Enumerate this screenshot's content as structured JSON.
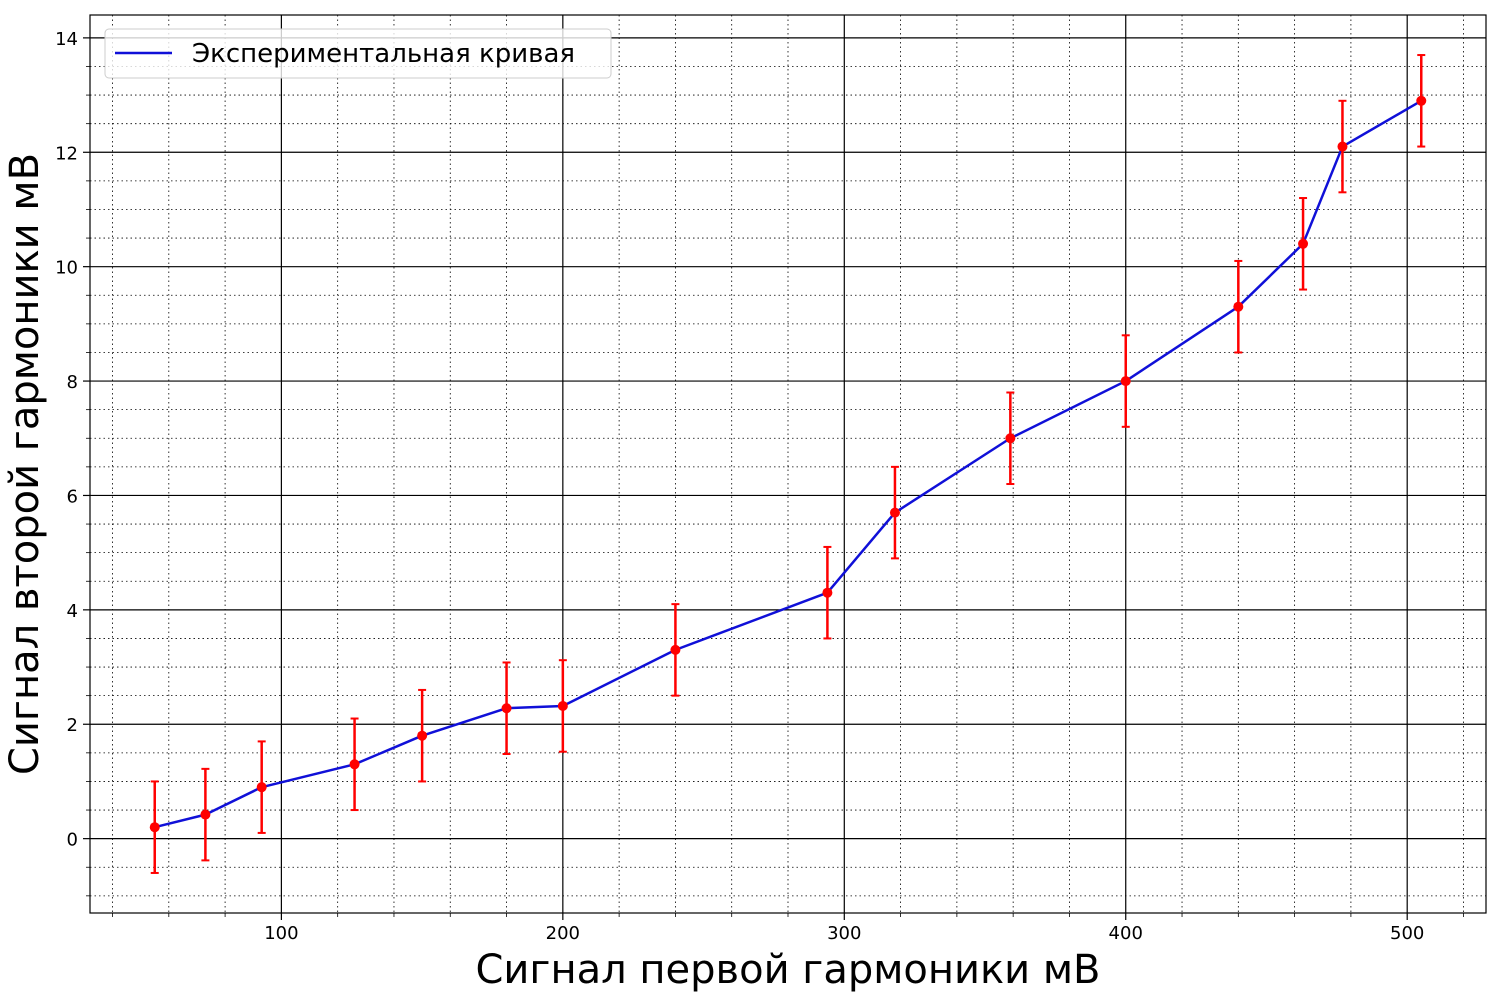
{
  "chart_data": {
    "type": "line",
    "xlabel": "Сигнал первой гармоники мВ",
    "ylabel": "Сигнал второй гармоники мВ",
    "xlim": [
      32,
      528
    ],
    "ylim": [
      -1.3,
      14.4
    ],
    "x_major_ticks": [
      100,
      200,
      300,
      400,
      500
    ],
    "y_major_ticks": [
      0,
      2,
      4,
      6,
      8,
      10,
      12,
      14
    ],
    "x_minor_step": 20,
    "y_minor_step": 0.5,
    "grid": "major solid, minor dotted",
    "legend": {
      "position": "top-left"
    },
    "series": [
      {
        "name": "Экспериментальная кривая",
        "line_color": "#1010d8",
        "marker_color": "#ff0000",
        "error_color": "#ff0000",
        "x": [
          55,
          73,
          93,
          126,
          150,
          180,
          200,
          240,
          294,
          318,
          359,
          400,
          440,
          463,
          477,
          505
        ],
        "y": [
          0.2,
          0.42,
          0.9,
          1.3,
          1.8,
          2.28,
          2.32,
          3.3,
          4.3,
          5.7,
          7.0,
          8.0,
          9.3,
          10.4,
          12.1,
          12.9
        ],
        "yerr": 0.8
      }
    ]
  }
}
